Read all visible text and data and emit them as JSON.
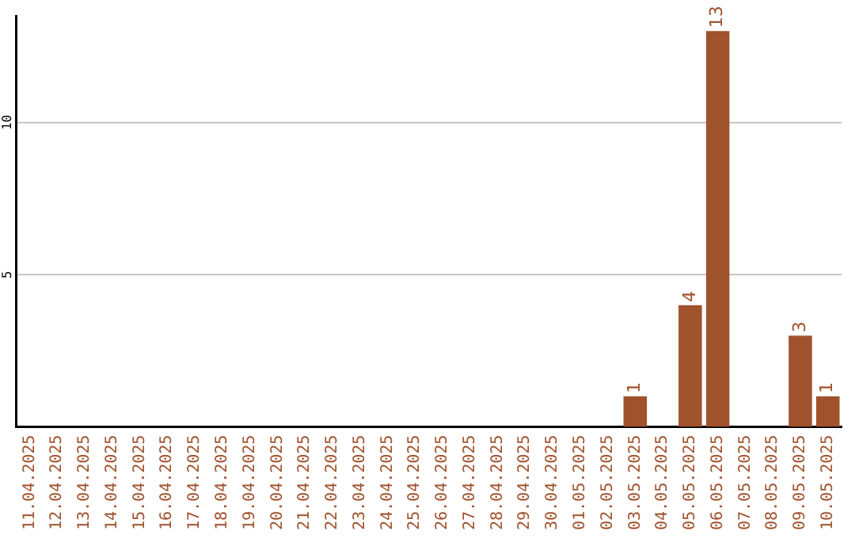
{
  "chart_data": {
    "type": "bar",
    "categories": [
      "11.04.2025",
      "12.04.2025",
      "13.04.2025",
      "14.04.2025",
      "15.04.2025",
      "16.04.2025",
      "17.04.2025",
      "18.04.2025",
      "19.04.2025",
      "20.04.2025",
      "21.04.2025",
      "22.04.2025",
      "23.04.2025",
      "24.04.2025",
      "25.04.2025",
      "26.04.2025",
      "27.04.2025",
      "28.04.2025",
      "29.04.2025",
      "30.04.2025",
      "01.05.2025",
      "02.05.2025",
      "03.05.2025",
      "04.05.2025",
      "05.05.2025",
      "06.05.2025",
      "07.05.2025",
      "08.05.2025",
      "09.05.2025",
      "10.05.2025"
    ],
    "values": [
      0,
      0,
      0,
      0,
      0,
      0,
      0,
      0,
      0,
      0,
      0,
      0,
      0,
      0,
      0,
      0,
      0,
      0,
      0,
      0,
      0,
      0,
      1,
      0,
      4,
      13,
      0,
      0,
      3,
      1
    ],
    "value_labels": [
      null,
      null,
      null,
      null,
      null,
      null,
      null,
      null,
      null,
      null,
      null,
      null,
      null,
      null,
      null,
      null,
      null,
      null,
      null,
      null,
      null,
      null,
      "1",
      null,
      "4",
      "13",
      null,
      null,
      "3",
      "1"
    ],
    "color": "#a0522d",
    "ylim": [
      0,
      13.5
    ],
    "yticks": [
      5,
      10
    ],
    "grid": "y",
    "legend": false
  }
}
